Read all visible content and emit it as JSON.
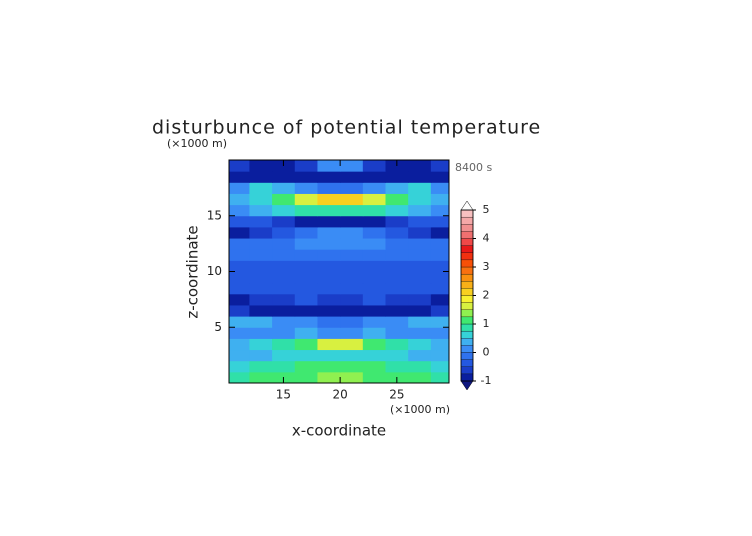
{
  "chart_data": {
    "type": "contour",
    "title": "disturbunce of potential temperature",
    "subtitle": "8400 s",
    "x_label": "x-coordinate",
    "y_label": "z-coordinate",
    "x_unit": "(×1000 m)",
    "y_unit": "(×1000 m)",
    "xlim": [
      10.2,
      29.6
    ],
    "ylim": [
      0,
      20
    ],
    "xticks": [
      15,
      20,
      25
    ],
    "yticks": [
      5,
      10,
      15
    ],
    "x": [
      11,
      13,
      15,
      17,
      19,
      21,
      23,
      25,
      27,
      29
    ],
    "y": [
      0.5,
      1.5,
      2.5,
      3.5,
      4.5,
      5.5,
      6.5,
      7.5,
      8.5,
      9.5,
      10.5,
      11.5,
      12.5,
      13.5,
      14.5,
      15.5,
      16.5,
      17.5,
      18.5,
      19.5
    ],
    "z": [
      [
        0.9,
        1.0,
        1.1,
        1.2,
        1.3,
        1.3,
        1.2,
        1.1,
        1.0,
        0.9
      ],
      [
        0.7,
        0.8,
        0.9,
        1.0,
        1.1,
        1.1,
        1.0,
        0.9,
        0.8,
        0.7
      ],
      [
        0.3,
        0.4,
        0.5,
        0.5,
        0.6,
        0.6,
        0.5,
        0.5,
        0.4,
        0.3
      ],
      [
        0.4,
        0.6,
        0.8,
        1.2,
        1.6,
        1.6,
        1.2,
        0.8,
        0.6,
        0.4
      ],
      [
        0.1,
        0.2,
        0.2,
        0.3,
        0.1,
        0.1,
        0.3,
        0.2,
        0.2,
        0.1
      ],
      [
        0.4,
        0.3,
        0.1,
        0.0,
        -0.1,
        -0.1,
        0.0,
        0.1,
        0.3,
        0.4
      ],
      [
        -0.7,
        -0.8,
        -0.8,
        -0.9,
        -0.9,
        -0.9,
        -0.9,
        -0.8,
        -0.8,
        -0.7
      ],
      [
        -0.8,
        -0.7,
        -0.6,
        -0.5,
        -0.6,
        -0.6,
        -0.5,
        -0.6,
        -0.7,
        -0.8
      ],
      [
        -0.4,
        -0.4,
        -0.3,
        -0.3,
        -0.3,
        -0.3,
        -0.3,
        -0.3,
        -0.4,
        -0.4
      ],
      [
        -0.3,
        -0.3,
        -0.3,
        -0.4,
        -0.5,
        -0.5,
        -0.4,
        -0.3,
        -0.3,
        -0.3
      ],
      [
        -0.3,
        -0.3,
        -0.3,
        -0.4,
        -0.5,
        -0.5,
        -0.4,
        -0.3,
        -0.3,
        -0.3
      ],
      [
        -0.2,
        -0.2,
        -0.2,
        -0.2,
        -0.2,
        -0.2,
        -0.2,
        -0.2,
        -0.2,
        -0.2
      ],
      [
        -0.1,
        -0.1,
        -0.1,
        0.0,
        0.2,
        0.2,
        0.0,
        -0.1,
        -0.1,
        -0.1
      ],
      [
        -0.8,
        -0.7,
        -0.3,
        -0.1,
        0.0,
        0.0,
        -0.1,
        -0.3,
        -0.7,
        -0.8
      ],
      [
        -0.3,
        -0.4,
        -0.6,
        -0.8,
        -0.9,
        -0.9,
        -0.8,
        -0.6,
        -0.4,
        -0.3
      ],
      [
        0.2,
        0.4,
        0.6,
        0.8,
        0.9,
        0.9,
        0.8,
        0.6,
        0.4,
        0.2
      ],
      [
        0.3,
        0.6,
        1.0,
        1.6,
        2.0,
        2.0,
        1.6,
        1.0,
        0.6,
        0.3
      ],
      [
        0.1,
        0.5,
        0.3,
        0.0,
        -0.2,
        -0.2,
        0.0,
        0.3,
        0.5,
        0.1
      ],
      [
        -0.8,
        -0.9,
        -0.9,
        -1.0,
        -0.9,
        -0.9,
        -1.0,
        -0.9,
        -0.9,
        -0.8
      ],
      [
        -0.7,
        -0.8,
        -0.8,
        -0.7,
        0.2,
        0.2,
        -0.7,
        -0.8,
        -0.8,
        -0.7
      ]
    ],
    "colorbar": {
      "levels": [
        -1,
        -0.75,
        -0.5,
        -0.25,
        0,
        0.25,
        0.5,
        0.75,
        1,
        1.25,
        1.5,
        1.75,
        2,
        2.25,
        2.5,
        2.75,
        3,
        3.25,
        3.5,
        3.75,
        4,
        4.25,
        4.5,
        4.75,
        5
      ],
      "colors": [
        "#0a1e9e",
        "#1a3dc8",
        "#2458e0",
        "#2f72ee",
        "#3a8cf5",
        "#3fb0f0",
        "#36d2d8",
        "#30e0a8",
        "#40e870",
        "#90f050",
        "#d8f040",
        "#f8f030",
        "#f8d020",
        "#f8b018",
        "#f89010",
        "#f87010",
        "#f85008",
        "#f03010",
        "#e81818",
        "#f04848",
        "#f07070",
        "#f09090",
        "#f4a8a8",
        "#f8c0c0"
      ],
      "under_color": "#101880",
      "over_color": "#ffffff",
      "ticks": [
        -1,
        0,
        1,
        2,
        3,
        4,
        5
      ]
    }
  }
}
